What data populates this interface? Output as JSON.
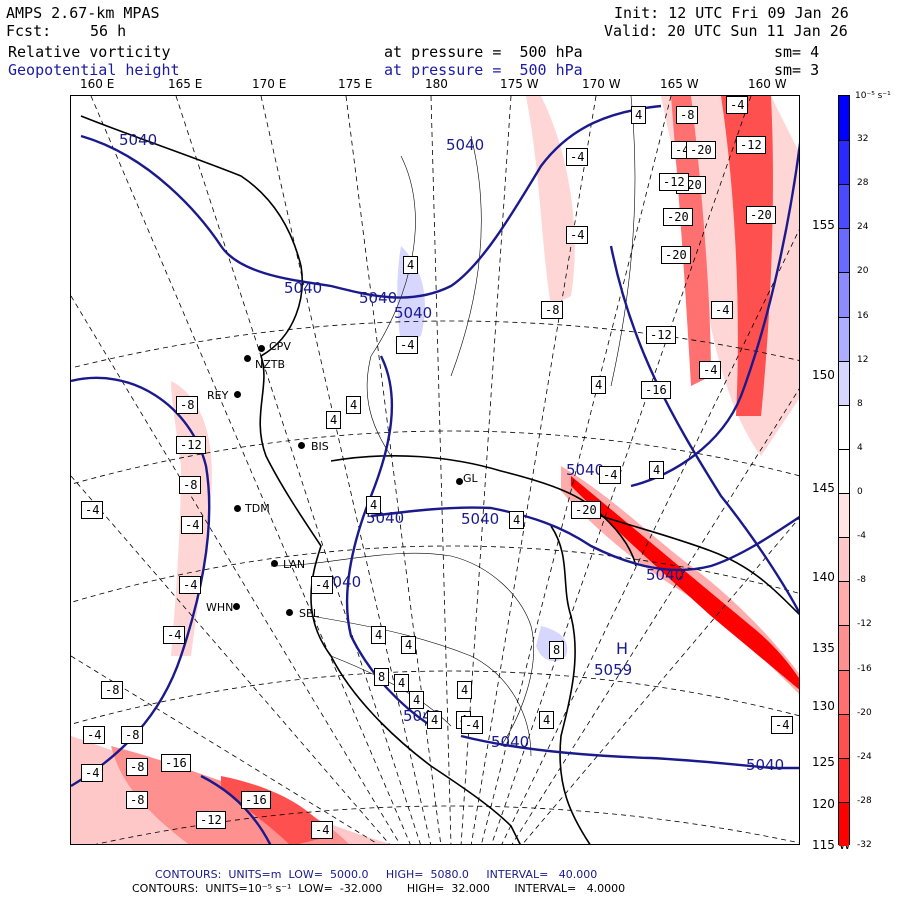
{
  "header": {
    "model": "AMPS 2.67-km MPAS",
    "init_label": "Init: 12 UTC Fri 09 Jan 26",
    "fcst_label": "Fcst:",
    "fcst_value": "56 h",
    "valid_label": "Valid: 20 UTC Sun 11 Jan 26",
    "field1": "Relative vorticity",
    "field1_level": "at pressure =  500 hPa",
    "field1_smooth": "sm= 4",
    "field2": "Geopotential height",
    "field2_level": "at pressure =  500 hPa",
    "field2_smooth": "sm= 3"
  },
  "longitude_labels": [
    "160 E",
    "165 E",
    "170 E",
    "175 E",
    "180",
    "175 W",
    "170 W",
    "165 W",
    "160 W"
  ],
  "latitude_labels": [
    "155 W",
    "150 W",
    "145 W",
    "140 W",
    "135 W",
    "130 W",
    "125 W",
    "120 W",
    "115 W"
  ],
  "colorbar": {
    "units": "10⁻⁵ s⁻¹",
    "ticks": [
      "32",
      "28",
      "24",
      "20",
      "16",
      "12",
      "8",
      "4",
      "0",
      "-4",
      "-8",
      "-12",
      "-16",
      "-20",
      "-24",
      "-28",
      "-32"
    ],
    "colors": [
      "#0000ff",
      "#2a2aff",
      "#4a4aff",
      "#6a6aff",
      "#8c8cff",
      "#aeaeff",
      "#d6d6ff",
      "#ffffff",
      "#ffffff",
      "#ffe4e4",
      "#ffc8c8",
      "#ffacac",
      "#ff9090",
      "#ff7070",
      "#ff5050",
      "#ff2a2a",
      "#ff0000"
    ]
  },
  "height_contours": {
    "labels": [
      "5040",
      "5040",
      "5040",
      "5040",
      "5040",
      "5040",
      "5040",
      "5040",
      "5040",
      "5040",
      "5040",
      "5040",
      "5040"
    ],
    "high_marker": "H",
    "high_value": "5059"
  },
  "vorticity_labels": [
    "4",
    "-8",
    "-12",
    "-20",
    "-4",
    "-4",
    "-4",
    "-12",
    "-20",
    "-20",
    "-20",
    "-4",
    "-12",
    "-20",
    "-8",
    "4",
    "-4",
    "-4",
    "-12",
    "-16",
    "-4",
    "4",
    "-8",
    "-12",
    "-8",
    "-4",
    "-4",
    "-4",
    "-4",
    "4",
    "4",
    "4",
    "-20",
    "-4",
    "4",
    "4",
    "-4",
    "4",
    "4",
    "8",
    "8",
    "4",
    "4",
    "4",
    "4",
    "4",
    "4",
    "-4",
    "-8",
    "-8",
    "-4",
    "-8",
    "-16",
    "-12",
    "-16",
    "-8",
    "-4",
    "-4",
    "-4"
  ],
  "stations": [
    "CPV",
    "NZTB",
    "REY",
    "BIS",
    "TDM",
    "LAN",
    "WHN",
    "SEL",
    "GL"
  ],
  "footer": {
    "line1": "CONTOURS:  UNITS=m  LOW=  5000.0     HIGH=  5080.0     INTERVAL=   40.000",
    "line2": "CONTOURS:  UNITS=10⁻⁵ s⁻¹  LOW=  -32.000       HIGH=  32.000       INTERVAL=   4.0000"
  }
}
